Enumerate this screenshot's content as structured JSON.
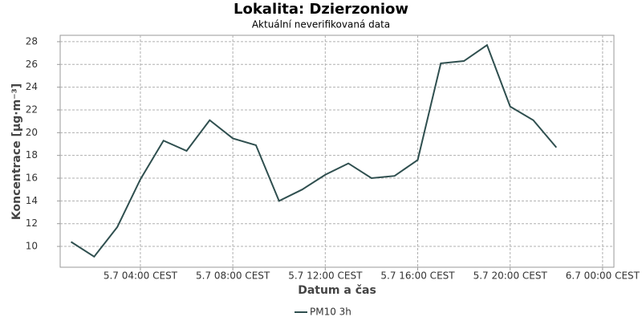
{
  "chart_data": {
    "type": "line",
    "title": "Lokalita: Dzierzoniow",
    "subtitle": "Aktuální neverifikovaná data",
    "x_label": "Datum a čas",
    "y_label": "Koncentrace [µg·m⁻³]",
    "x": [
      1,
      2,
      3,
      4,
      5,
      6,
      7,
      8,
      9,
      10,
      11,
      12,
      13,
      14,
      15,
      16,
      17,
      18,
      19,
      20,
      21,
      22
    ],
    "series": [
      {
        "name": "PM10 3h",
        "color": "#2f4f4f",
        "values": [
          10.4,
          9.1,
          11.7,
          15.9,
          19.3,
          18.4,
          21.1,
          19.5,
          18.9,
          14.0,
          15.0,
          16.3,
          17.3,
          16.0,
          16.2,
          17.6,
          26.1,
          26.3,
          27.7,
          22.3,
          21.1,
          18.7
        ]
      }
    ],
    "xlim": [
      0.53,
      24.49
    ],
    "xticks": [
      {
        "value": 4,
        "label": "5.7 04:00 CEST"
      },
      {
        "value": 8,
        "label": "5.7 08:00 CEST"
      },
      {
        "value": 12,
        "label": "5.7 12:00 CEST"
      },
      {
        "value": 16,
        "label": "5.7 16:00 CEST"
      },
      {
        "value": 20,
        "label": "5.7 20:00 CEST"
      },
      {
        "value": 24,
        "label": "6.7 00:00 CEST"
      }
    ],
    "ylim": [
      8.17,
      28.56
    ],
    "yticks": [
      10,
      12,
      14,
      16,
      18,
      20,
      22,
      24,
      26,
      28
    ],
    "grid": true
  }
}
